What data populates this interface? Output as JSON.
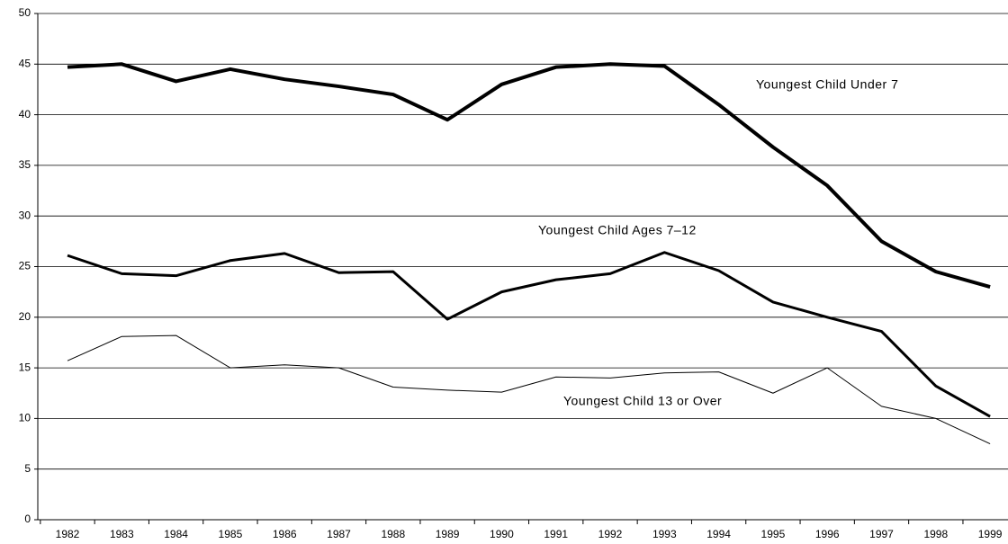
{
  "chart_data": {
    "type": "line",
    "categories": [
      "1982",
      "1983",
      "1984",
      "1985",
      "1986",
      "1987",
      "1988",
      "1989",
      "1990",
      "1991",
      "1992",
      "1993",
      "1994",
      "1995",
      "1996",
      "1997",
      "1998",
      "1999"
    ],
    "series": [
      {
        "name": "Youngest Child Under 7",
        "color": "#000000",
        "line_width": 4,
        "values": [
          44.7,
          45.0,
          43.3,
          44.5,
          43.5,
          42.8,
          42.0,
          39.5,
          43.0,
          44.7,
          45.0,
          44.8,
          41.0,
          36.8,
          33.0,
          27.5,
          24.5,
          23.0
        ]
      },
      {
        "name": "Youngest Child Ages 7–12",
        "color": "#000000",
        "line_width": 3,
        "values": [
          26.1,
          24.3,
          24.1,
          25.6,
          26.3,
          24.4,
          24.5,
          19.8,
          22.5,
          23.7,
          24.3,
          26.4,
          24.6,
          21.5,
          20.0,
          18.6,
          13.2,
          10.2
        ]
      },
      {
        "name": "Youngest Child 13 or Over",
        "color": "#000000",
        "line_width": 1,
        "values": [
          15.7,
          18.1,
          18.2,
          15.0,
          15.3,
          15.0,
          13.1,
          12.8,
          12.6,
          14.1,
          14.0,
          14.5,
          14.6,
          12.5,
          15.0,
          11.2,
          10.0,
          7.5
        ]
      }
    ],
    "ylim": [
      0,
      50
    ],
    "yticks": [
      0,
      5,
      10,
      15,
      20,
      25,
      30,
      35,
      40,
      45,
      50
    ],
    "grid": true
  }
}
